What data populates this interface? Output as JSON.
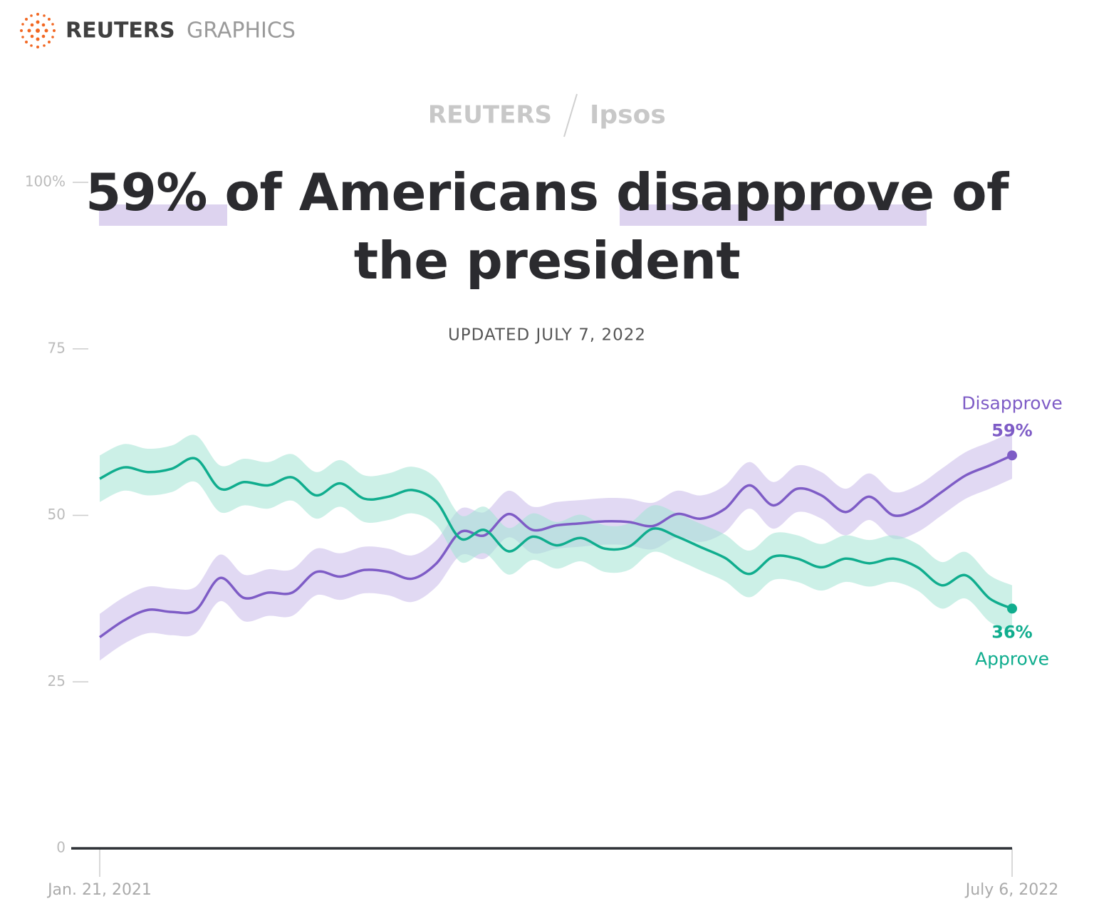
{
  "chart_data": {
    "type": "line",
    "brand": "REUTERS",
    "brand_section": "GRAPHICS",
    "partner": [
      "REUTERS",
      "Ipsos"
    ],
    "title": "59% of Americans disapprove of the president",
    "subtitle": "UPDATED JULY 7, 2022",
    "x": [
      "2021-01-21",
      "2021-02-04",
      "2021-02-18",
      "2021-03-04",
      "2021-03-18",
      "2021-04-01",
      "2021-04-15",
      "2021-04-29",
      "2021-05-13",
      "2021-05-27",
      "2021-06-10",
      "2021-06-24",
      "2021-07-08",
      "2021-07-22",
      "2021-08-05",
      "2021-08-19",
      "2021-09-02",
      "2021-09-16",
      "2021-09-30",
      "2021-10-14",
      "2021-10-28",
      "2021-11-11",
      "2021-11-25",
      "2021-12-09",
      "2021-12-23",
      "2022-01-06",
      "2022-01-20",
      "2022-02-03",
      "2022-02-17",
      "2022-03-03",
      "2022-03-17",
      "2022-03-31",
      "2022-04-14",
      "2022-04-28",
      "2022-05-12",
      "2022-05-26",
      "2022-06-09",
      "2022-06-23",
      "2022-07-06"
    ],
    "xlim": [
      "2021-01-21",
      "2022-07-06"
    ],
    "xticks": [
      {
        "value": "2021-01-21",
        "label": "Jan. 21, 2021"
      },
      {
        "value": "2022-07-06",
        "label": "July 6, 2022"
      }
    ],
    "ylim": [
      0,
      100
    ],
    "yticks": [
      0,
      25,
      50,
      75,
      {
        "value": 100,
        "label": "100%"
      }
    ],
    "series": [
      {
        "name": "Disapprove",
        "color": "#7e5cc6",
        "band_color": "#c9b9ea",
        "band": 3.5,
        "values": [
          31.7,
          34.2,
          35.8,
          35.5,
          35.8,
          40.6,
          37.6,
          38.4,
          38.4,
          41.5,
          40.8,
          41.8,
          41.5,
          40.5,
          42.8,
          47.5,
          47.0,
          50.2,
          47.8,
          48.5,
          48.8,
          49.1,
          49.0,
          48.4,
          50.2,
          49.5,
          51.0,
          54.5,
          51.5,
          54.0,
          53.0,
          50.5,
          52.8,
          50.0,
          51.0,
          53.5,
          56.0,
          57.5,
          59
        ],
        "value_labels": [
          null,
          null,
          null,
          null,
          null,
          null,
          null,
          null,
          null,
          null,
          null,
          null,
          null,
          null,
          null,
          null,
          null,
          null,
          null,
          null,
          null,
          null,
          null,
          null,
          null,
          null,
          null,
          null,
          null,
          null,
          null,
          null,
          null,
          null,
          null,
          null,
          null,
          null,
          "59%"
        ]
      },
      {
        "name": "Approve",
        "color": "#10ad8e",
        "band_color": "#a3e4d4",
        "band": 3.5,
        "values": [
          55.5,
          57.2,
          56.5,
          57.0,
          58.5,
          54.0,
          55.0,
          54.5,
          55.7,
          53.0,
          54.8,
          52.5,
          52.8,
          53.8,
          52.0,
          46.5,
          47.8,
          44.6,
          46.8,
          45.5,
          46.6,
          45.0,
          45.3,
          48.0,
          46.8,
          45.2,
          43.6,
          41.2,
          43.8,
          43.5,
          42.2,
          43.5,
          42.8,
          43.5,
          42.2,
          39.5,
          41.0,
          37.5,
          36
        ],
        "value_labels": [
          null,
          null,
          null,
          null,
          null,
          null,
          null,
          null,
          null,
          null,
          null,
          null,
          null,
          null,
          null,
          null,
          null,
          null,
          null,
          null,
          null,
          null,
          null,
          null,
          null,
          null,
          null,
          null,
          null,
          null,
          null,
          null,
          null,
          null,
          null,
          null,
          null,
          null,
          "36%"
        ]
      }
    ]
  }
}
